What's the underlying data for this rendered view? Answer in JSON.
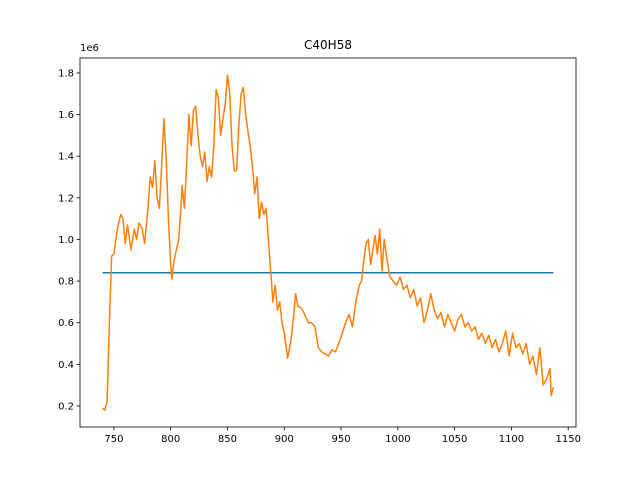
{
  "chart_data": {
    "type": "line",
    "title": "C40H58",
    "y_offset_label": "1e6",
    "xlim": [
      720.15,
      1156.85
    ],
    "ylim": [
      0.099,
      1.872
    ],
    "xticks": [
      750,
      800,
      850,
      900,
      950,
      1000,
      1050,
      1100,
      1150
    ],
    "yticks": [
      0.2,
      0.4,
      0.6,
      0.8,
      {
        "value": 1,
        "label": "1.0"
      },
      1.2,
      1.4,
      1.6,
      1.8
    ],
    "series": [
      {
        "color": "#1f77b4",
        "x": [
          740,
          1137
        ],
        "values": [
          0.84,
          0.84
        ]
      },
      {
        "color": "#ff7f0e",
        "x": [
          740,
          742,
          744,
          746,
          748,
          750,
          753,
          756,
          758,
          760,
          762,
          765,
          768,
          770,
          772,
          775,
          777,
          780,
          782,
          784,
          786,
          788,
          790,
          792,
          794,
          796,
          798,
          800,
          801,
          803,
          805,
          807,
          809,
          810,
          812,
          814,
          816,
          818,
          820,
          822,
          824,
          826,
          828,
          830,
          832,
          834,
          836,
          838,
          840,
          842,
          844,
          846,
          848,
          850,
          852,
          854,
          856,
          858,
          860,
          862,
          864,
          866,
          868,
          870,
          872,
          874,
          876,
          878,
          880,
          882,
          884,
          886,
          888,
          890,
          892,
          894,
          896,
          898,
          900,
          903,
          906,
          908,
          910,
          912,
          915,
          918,
          921,
          924,
          927,
          930,
          933,
          936,
          939,
          942,
          945,
          948,
          951,
          954,
          957,
          960,
          963,
          966,
          968,
          970,
          972,
          974,
          976,
          978,
          980,
          982,
          984,
          986,
          988,
          990,
          993,
          996,
          999,
          1002,
          1005,
          1008,
          1011,
          1014,
          1017,
          1020,
          1023,
          1026,
          1029,
          1032,
          1035,
          1038,
          1041,
          1044,
          1047,
          1050,
          1053,
          1056,
          1059,
          1062,
          1065,
          1068,
          1071,
          1074,
          1077,
          1080,
          1083,
          1086,
          1089,
          1092,
          1095,
          1098,
          1101,
          1104,
          1107,
          1110,
          1113,
          1116,
          1119,
          1122,
          1125,
          1128,
          1131,
          1134,
          1135,
          1137
        ],
        "values": [
          0.19,
          0.18,
          0.22,
          0.6,
          0.92,
          0.93,
          1.05,
          1.12,
          1.1,
          0.98,
          1.07,
          0.95,
          1.05,
          1.0,
          1.08,
          1.05,
          0.98,
          1.15,
          1.3,
          1.25,
          1.38,
          1.2,
          1.15,
          1.35,
          1.58,
          1.4,
          1.1,
          0.88,
          0.81,
          0.9,
          0.95,
          1.0,
          1.15,
          1.26,
          1.15,
          1.35,
          1.6,
          1.45,
          1.62,
          1.64,
          1.5,
          1.4,
          1.35,
          1.42,
          1.28,
          1.35,
          1.3,
          1.45,
          1.72,
          1.68,
          1.5,
          1.58,
          1.65,
          1.79,
          1.7,
          1.45,
          1.33,
          1.33,
          1.55,
          1.7,
          1.73,
          1.6,
          1.52,
          1.45,
          1.35,
          1.22,
          1.3,
          1.1,
          1.18,
          1.12,
          1.15,
          1.0,
          0.85,
          0.7,
          0.78,
          0.66,
          0.7,
          0.6,
          0.55,
          0.43,
          0.52,
          0.62,
          0.74,
          0.68,
          0.67,
          0.64,
          0.6,
          0.6,
          0.58,
          0.48,
          0.46,
          0.45,
          0.44,
          0.47,
          0.46,
          0.5,
          0.55,
          0.6,
          0.64,
          0.58,
          0.7,
          0.78,
          0.8,
          0.9,
          0.98,
          1.0,
          0.88,
          0.95,
          1.02,
          0.93,
          1.05,
          0.85,
          1.0,
          0.92,
          0.82,
          0.8,
          0.78,
          0.82,
          0.76,
          0.78,
          0.72,
          0.76,
          0.68,
          0.72,
          0.6,
          0.66,
          0.74,
          0.66,
          0.62,
          0.65,
          0.58,
          0.64,
          0.6,
          0.56,
          0.62,
          0.64,
          0.58,
          0.6,
          0.56,
          0.58,
          0.52,
          0.55,
          0.5,
          0.54,
          0.48,
          0.52,
          0.46,
          0.5,
          0.56,
          0.44,
          0.55,
          0.48,
          0.5,
          0.45,
          0.5,
          0.4,
          0.44,
          0.35,
          0.48,
          0.3,
          0.33,
          0.38,
          0.25,
          0.29
        ]
      }
    ]
  }
}
